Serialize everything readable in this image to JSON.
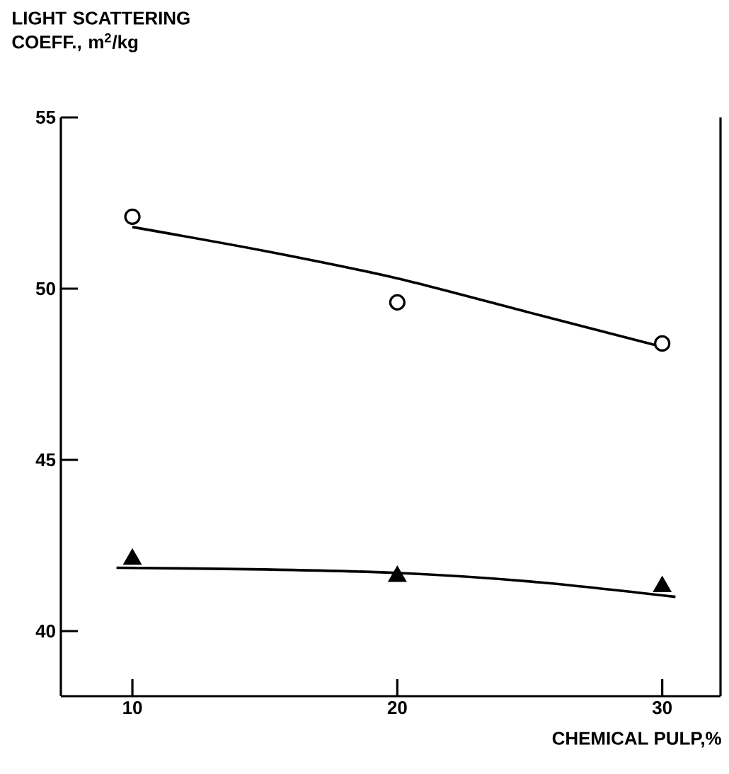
{
  "chart_data": {
    "type": "scatter",
    "ylabel": "LIGHT SCATTERING COEFF., m$^{2}$/kg",
    "xlabel": "CHEMICAL PULP,%",
    "xlim": [
      7.3,
      32.2
    ],
    "ylim": [
      38.1,
      55
    ],
    "xticks": [
      10,
      20,
      30
    ],
    "yticks": [
      40,
      45,
      50,
      55
    ],
    "series": [
      {
        "marker": "circle",
        "color": "#000000",
        "x": [
          10,
          20,
          30
        ],
        "values": [
          52.1,
          49.6,
          48.4
        ]
      },
      {
        "marker": "triangle",
        "color": "#000000",
        "x": [
          10,
          20,
          30
        ],
        "values": [
          42.1,
          41.6,
          41.3
        ]
      },
      {
        "type": "line",
        "marker": "none",
        "color": "#000000",
        "x": [
          10,
          15,
          20,
          25,
          30
        ],
        "values": [
          51.8,
          51.1,
          50.3,
          49.3,
          48.3
        ]
      },
      {
        "type": "line",
        "marker": "none",
        "color": "#000000",
        "x": [
          9.4,
          15,
          20,
          25,
          30.5
        ],
        "values": [
          41.85,
          41.8,
          41.7,
          41.45,
          41.0
        ]
      }
    ]
  }
}
